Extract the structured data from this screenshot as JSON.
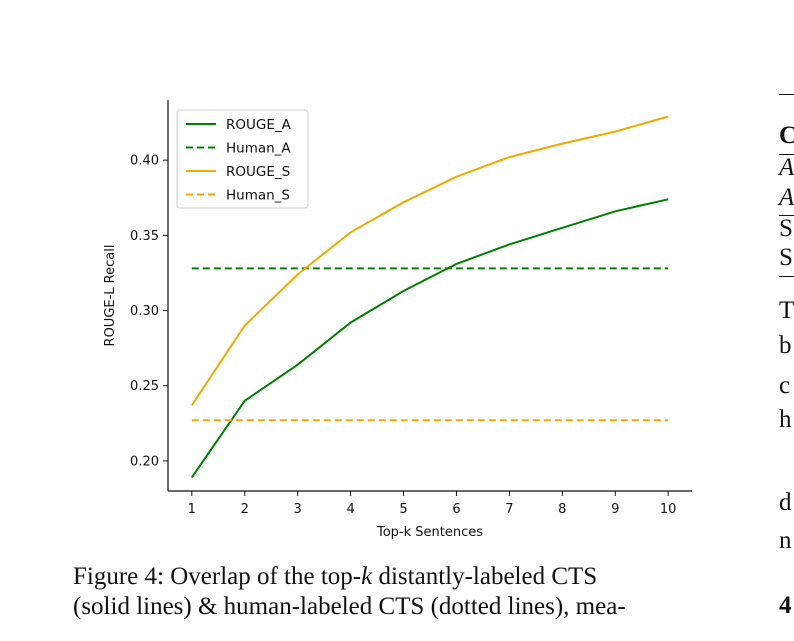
{
  "chart_data": {
    "type": "line",
    "xlabel": "Top-k Sentences",
    "ylabel": "ROUGE-L Recall",
    "x": [
      1,
      2,
      3,
      4,
      5,
      6,
      7,
      8,
      9,
      10
    ],
    "xticks": [
      "1",
      "2",
      "3",
      "4",
      "5",
      "6",
      "7",
      "8",
      "9",
      "10"
    ],
    "yticks": [
      "0.20",
      "0.25",
      "0.30",
      "0.35",
      "0.40"
    ],
    "ylim": [
      0.18,
      0.44
    ],
    "legend_position": "top-left",
    "series": [
      {
        "name": "ROUGE_A",
        "color": "#008000",
        "style": "solid",
        "values": [
          0.189,
          0.24,
          0.264,
          0.292,
          0.313,
          0.331,
          0.344,
          0.355,
          0.366,
          0.374
        ]
      },
      {
        "name": "Human_A",
        "color": "#008000",
        "style": "dashed",
        "values": [
          0.328,
          0.328,
          0.328,
          0.328,
          0.328,
          0.328,
          0.328,
          0.328,
          0.328,
          0.328
        ]
      },
      {
        "name": "ROUGE_S",
        "color": "#f2a900",
        "style": "solid",
        "values": [
          0.237,
          0.29,
          0.324,
          0.352,
          0.372,
          0.389,
          0.402,
          0.411,
          0.419,
          0.429
        ]
      },
      {
        "name": "Human_S",
        "color": "#f2a900",
        "style": "dashed",
        "values": [
          0.227,
          0.227,
          0.227,
          0.227,
          0.227,
          0.227,
          0.227,
          0.227,
          0.227,
          0.227
        ]
      }
    ]
  },
  "caption": {
    "line1_pre": "Figure 4:  Overlap of the top-",
    "line1_k": "k",
    "line1_post": " distantly-labeled CTS",
    "line2": "(solid lines) & human-labeled CTS (dotted lines), mea-"
  },
  "right_column": {
    "table_fragments": [
      "C",
      "A",
      "A",
      "S",
      "S"
    ],
    "text_fragments": [
      "T",
      "b",
      "c",
      "h",
      "d",
      "n",
      "4"
    ]
  }
}
